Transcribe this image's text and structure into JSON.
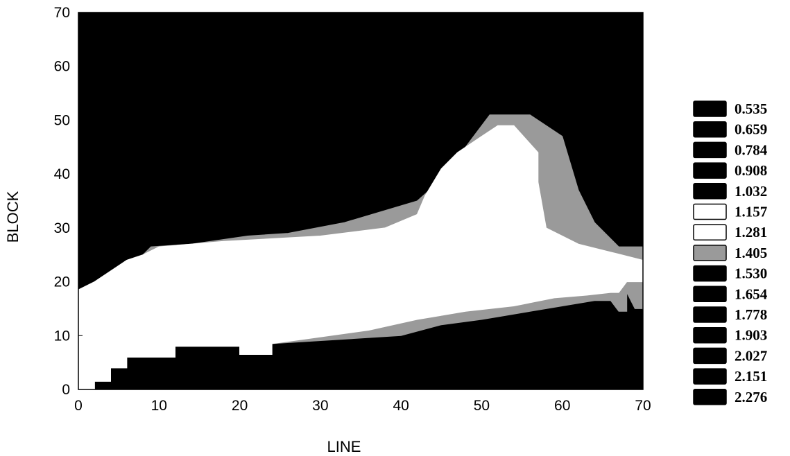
{
  "chart_data": {
    "type": "heatmap",
    "title": "",
    "xlabel": "LINE",
    "ylabel": "BLOCK",
    "xlim": [
      0,
      70
    ],
    "ylim": [
      0,
      70
    ],
    "x_ticks": [
      "0",
      "10",
      "20",
      "30",
      "40",
      "50",
      "60",
      "70"
    ],
    "y_ticks": [
      "0",
      "10",
      "20",
      "30",
      "40",
      "50",
      "60",
      "70"
    ],
    "legend_position": "right",
    "legend": [
      {
        "label": "0.535",
        "color": "#000000"
      },
      {
        "label": "0.659",
        "color": "#000000"
      },
      {
        "label": "0.784",
        "color": "#000000"
      },
      {
        "label": "0.908",
        "color": "#000000"
      },
      {
        "label": "1.032",
        "color": "#000000"
      },
      {
        "label": "1.157",
        "color": "#ffffff"
      },
      {
        "label": "1.281",
        "color": "#ffffff"
      },
      {
        "label": "1.405",
        "color": "#9a9a9a"
      },
      {
        "label": "1.530",
        "color": "#000000"
      },
      {
        "label": "1.654",
        "color": "#000000"
      },
      {
        "label": "1.778",
        "color": "#000000"
      },
      {
        "label": "1.903",
        "color": "#000000"
      },
      {
        "label": "2.027",
        "color": "#000000"
      },
      {
        "label": "2.151",
        "color": "#000000"
      },
      {
        "label": "2.276",
        "color": "#000000"
      }
    ],
    "regions": [
      {
        "level": "1.405",
        "color": "#9a9a9a",
        "x": [
          0,
          2,
          2,
          4,
          4,
          6,
          6,
          12,
          12,
          20,
          20,
          24,
          24,
          40,
          45,
          50,
          52,
          56,
          58,
          64,
          66,
          67,
          68,
          68,
          69,
          70,
          70,
          67,
          64,
          62,
          60,
          56,
          51,
          49,
          47,
          45,
          42,
          33,
          26,
          21,
          14,
          9,
          8,
          6,
          4,
          2,
          0
        ],
        "y": [
          0,
          0,
          1.5,
          1.5,
          4,
          4,
          6,
          6,
          8,
          8,
          6.5,
          6.5,
          8.5,
          10,
          12,
          13,
          13.5,
          14.5,
          15,
          16.5,
          16.5,
          14.5,
          14.5,
          18,
          15,
          15,
          26.5,
          26.5,
          31,
          37,
          47,
          51,
          51,
          47,
          43,
          39,
          35,
          31,
          29,
          28.5,
          27,
          26.5,
          25,
          24,
          22,
          20,
          18.5
        ]
      },
      {
        "level": "1.281",
        "color": "#ffffff",
        "x": [
          0,
          2,
          2,
          4,
          4,
          6,
          6,
          12,
          12,
          20,
          20,
          24,
          24,
          36,
          42,
          48,
          54,
          59,
          63,
          66,
          67,
          68,
          70,
          70,
          66,
          62,
          58,
          57,
          57,
          54,
          52,
          50,
          47,
          45,
          43,
          42,
          38,
          30,
          24,
          18,
          10,
          8,
          6,
          4,
          2,
          0
        ],
        "y": [
          0,
          0,
          1.5,
          1.5,
          4,
          4,
          6,
          6,
          8,
          8,
          6.5,
          6.5,
          8.5,
          11,
          13,
          14.5,
          15.5,
          17,
          17.5,
          18,
          18,
          20,
          20,
          24,
          25.5,
          27,
          30,
          38.5,
          44,
          49,
          49,
          47,
          44,
          41,
          36,
          32.5,
          30,
          28.5,
          28,
          27.5,
          26.5,
          25,
          24,
          22,
          20,
          18.5
        ]
      }
    ]
  }
}
